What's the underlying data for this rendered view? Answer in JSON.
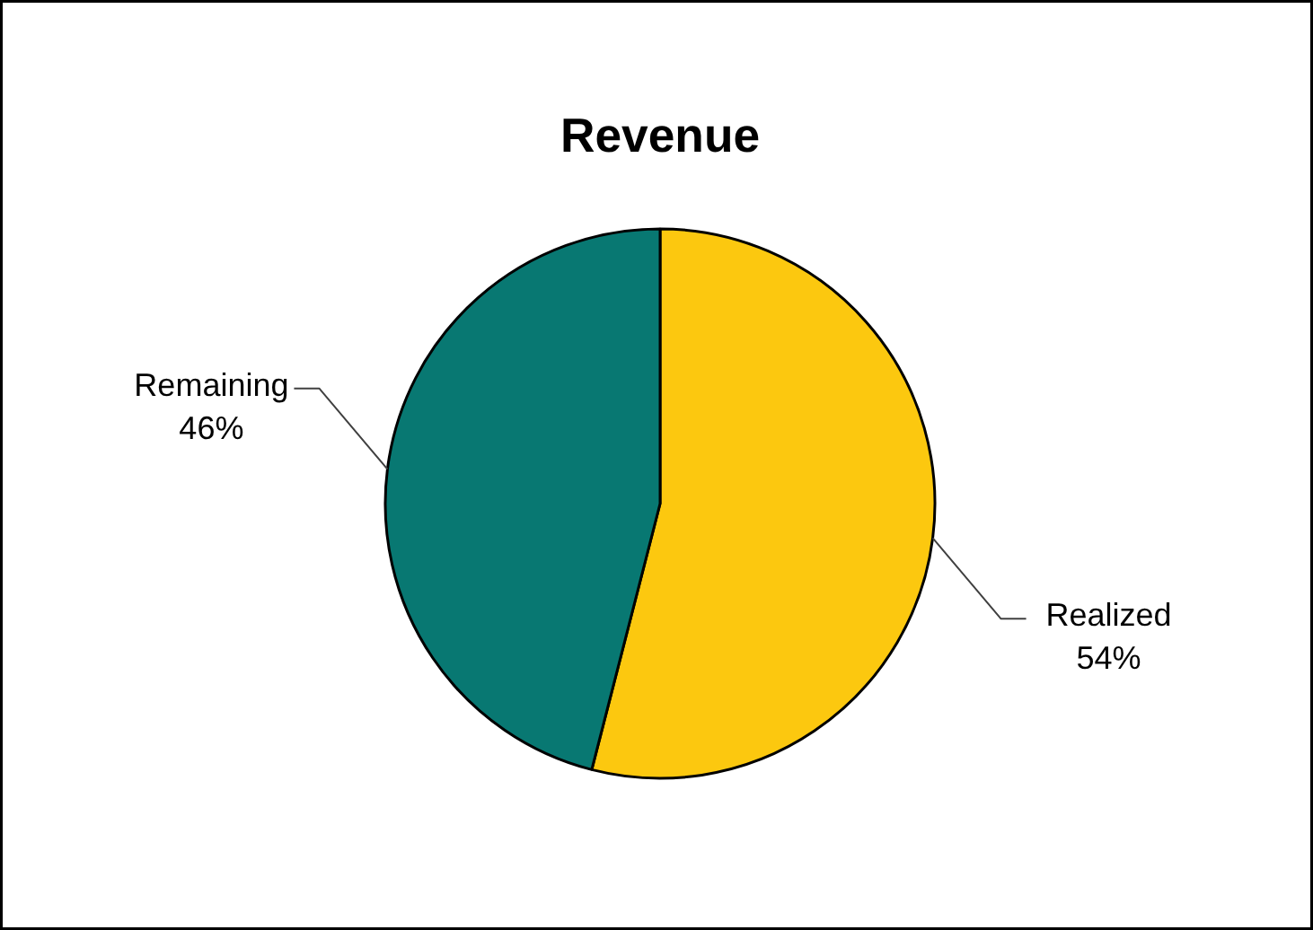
{
  "chart_data": {
    "type": "pie",
    "title": "Revenue",
    "categories": [
      "Realized",
      "Remaining"
    ],
    "values": [
      54,
      46
    ],
    "value_labels": [
      "54%",
      "46%"
    ],
    "colors": [
      "#fcc80f",
      "#087872"
    ]
  }
}
